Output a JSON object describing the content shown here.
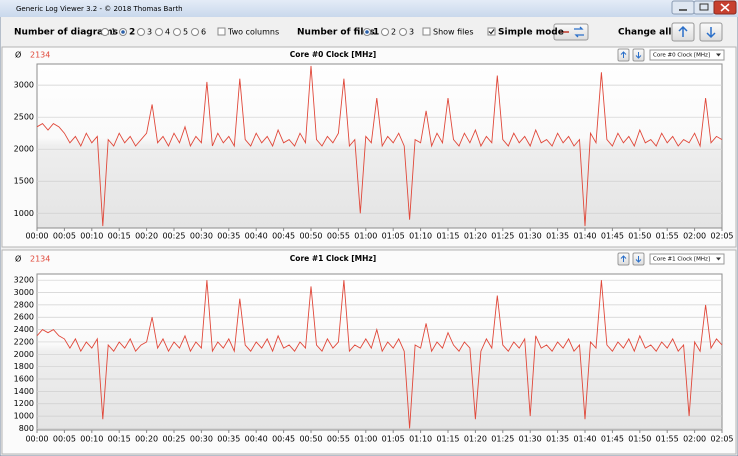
{
  "window": {
    "title": "Generic Log Viewer 3.2 - © 2018 Thomas Barth"
  },
  "toolbar": {
    "diagrams": {
      "label": "Number of diagrams",
      "options": [
        "1",
        "2",
        "3",
        "4",
        "5",
        "6"
      ],
      "selected": 1
    },
    "two_columns": {
      "label": "Two columns",
      "checked": false
    },
    "files": {
      "label": "Number of files",
      "options": [
        "1",
        "2",
        "3"
      ],
      "selected": 0
    },
    "show_files": {
      "label": "Show files",
      "checked": false
    },
    "simple_mode": {
      "label": "Simple mode",
      "checked": true
    },
    "change_all": "Change all"
  },
  "chart_data": [
    {
      "type": "line",
      "title": "Core #0 Clock [MHz]",
      "average_label": "Ø",
      "average": 2134,
      "selector": "Core #0 Clock [MHz]",
      "xlim": [
        0,
        125
      ],
      "ylim": [
        770,
        3330
      ],
      "yticks": [
        1000,
        1500,
        2000,
        2500,
        3000
      ],
      "grid": true,
      "xticks": [
        {
          "value": 0,
          "label": "00:00"
        },
        {
          "value": 5,
          "label": "00:05"
        },
        {
          "value": 10,
          "label": "00:10"
        },
        {
          "value": 15,
          "label": "00:15"
        },
        {
          "value": 20,
          "label": "00:20"
        },
        {
          "value": 25,
          "label": "00:25"
        },
        {
          "value": 30,
          "label": "00:30"
        },
        {
          "value": 35,
          "label": "00:35"
        },
        {
          "value": 40,
          "label": "00:40"
        },
        {
          "value": 45,
          "label": "00:45"
        },
        {
          "value": 50,
          "label": "00:50"
        },
        {
          "value": 55,
          "label": "00:55"
        },
        {
          "value": 60,
          "label": "01:00"
        },
        {
          "value": 65,
          "label": "01:05"
        },
        {
          "value": 70,
          "label": "01:10"
        },
        {
          "value": 75,
          "label": "01:15"
        },
        {
          "value": 80,
          "label": "01:20"
        },
        {
          "value": 85,
          "label": "01:25"
        },
        {
          "value": 90,
          "label": "01:30"
        },
        {
          "value": 95,
          "label": "01:35"
        },
        {
          "value": 100,
          "label": "01:40"
        },
        {
          "value": 105,
          "label": "01:45"
        },
        {
          "value": 110,
          "label": "01:50"
        },
        {
          "value": 115,
          "label": "01:55"
        },
        {
          "value": 120,
          "label": "02:00"
        },
        {
          "value": 125,
          "label": "02:05"
        }
      ],
      "x": [
        0,
        1,
        2,
        3,
        4,
        5,
        6,
        7,
        8,
        9,
        10,
        11,
        12,
        13,
        14,
        15,
        16,
        17,
        18,
        19,
        20,
        21,
        22,
        23,
        24,
        25,
        26,
        27,
        28,
        29,
        30,
        31,
        32,
        33,
        34,
        35,
        36,
        37,
        38,
        39,
        40,
        41,
        42,
        43,
        44,
        45,
        46,
        47,
        48,
        49,
        50,
        51,
        52,
        53,
        54,
        55,
        56,
        57,
        58,
        59,
        60,
        61,
        62,
        63,
        64,
        65,
        66,
        67,
        68,
        69,
        70,
        71,
        72,
        73,
        74,
        75,
        76,
        77,
        78,
        79,
        80,
        81,
        82,
        83,
        84,
        85,
        86,
        87,
        88,
        89,
        90,
        91,
        92,
        93,
        94,
        95,
        96,
        97,
        98,
        99,
        100,
        101,
        102,
        103,
        104,
        105,
        106,
        107,
        108,
        109,
        110,
        111,
        112,
        113,
        114,
        115,
        116,
        117,
        118,
        119,
        120,
        121,
        122,
        123,
        124,
        125
      ],
      "series": [
        {
          "color": "#e0483a",
          "values": [
            2350,
            2400,
            2300,
            2400,
            2350,
            2250,
            2100,
            2200,
            2050,
            2250,
            2100,
            2200,
            800,
            2150,
            2050,
            2250,
            2100,
            2200,
            2050,
            2150,
            2250,
            2700,
            2100,
            2200,
            2050,
            2250,
            2100,
            2350,
            2050,
            2200,
            2100,
            3050,
            2050,
            2250,
            2100,
            2200,
            2050,
            3100,
            2150,
            2050,
            2250,
            2100,
            2200,
            2050,
            2300,
            2100,
            2150,
            2050,
            2250,
            2100,
            3300,
            2150,
            2050,
            2200,
            2100,
            2250,
            3100,
            2050,
            2150,
            1000,
            2200,
            2100,
            2800,
            2050,
            2200,
            2100,
            2250,
            2050,
            900,
            2150,
            2100,
            2600,
            2050,
            2250,
            2100,
            2800,
            2150,
            2050,
            2250,
            2100,
            2300,
            2050,
            2200,
            2100,
            3150,
            2150,
            2050,
            2250,
            2100,
            2200,
            2050,
            2300,
            2100,
            2150,
            2050,
            2250,
            2100,
            2200,
            2050,
            2150,
            800,
            2250,
            2100,
            3200,
            2150,
            2050,
            2250,
            2100,
            2200,
            2050,
            2300,
            2100,
            2150,
            2050,
            2250,
            2100,
            2200,
            2050,
            2150,
            2100,
            2250,
            2050,
            2800,
            2100,
            2200,
            2150
          ]
        }
      ]
    },
    {
      "type": "line",
      "title": "Core #1 Clock [MHz]",
      "average_label": "Ø",
      "average": 2134,
      "selector": "Core #1 Clock [MHz]",
      "xlim": [
        0,
        125
      ],
      "ylim": [
        775,
        3300
      ],
      "yticks": [
        800,
        1000,
        1200,
        1400,
        1600,
        1800,
        2000,
        2200,
        2400,
        2600,
        2800,
        3000,
        3200
      ],
      "grid": true,
      "xticks": [
        {
          "value": 0,
          "label": "00:00"
        },
        {
          "value": 5,
          "label": "00:05"
        },
        {
          "value": 10,
          "label": "00:10"
        },
        {
          "value": 15,
          "label": "00:15"
        },
        {
          "value": 20,
          "label": "00:20"
        },
        {
          "value": 25,
          "label": "00:25"
        },
        {
          "value": 30,
          "label": "00:30"
        },
        {
          "value": 35,
          "label": "00:35"
        },
        {
          "value": 40,
          "label": "00:40"
        },
        {
          "value": 45,
          "label": "00:45"
        },
        {
          "value": 50,
          "label": "00:50"
        },
        {
          "value": 55,
          "label": "00:55"
        },
        {
          "value": 60,
          "label": "01:00"
        },
        {
          "value": 65,
          "label": "01:05"
        },
        {
          "value": 70,
          "label": "01:10"
        },
        {
          "value": 75,
          "label": "01:15"
        },
        {
          "value": 80,
          "label": "01:20"
        },
        {
          "value": 85,
          "label": "01:25"
        },
        {
          "value": 90,
          "label": "01:30"
        },
        {
          "value": 95,
          "label": "01:35"
        },
        {
          "value": 100,
          "label": "01:40"
        },
        {
          "value": 105,
          "label": "01:45"
        },
        {
          "value": 110,
          "label": "01:50"
        },
        {
          "value": 115,
          "label": "01:55"
        },
        {
          "value": 120,
          "label": "02:00"
        },
        {
          "value": 125,
          "label": "02:05"
        }
      ],
      "x": [
        0,
        1,
        2,
        3,
        4,
        5,
        6,
        7,
        8,
        9,
        10,
        11,
        12,
        13,
        14,
        15,
        16,
        17,
        18,
        19,
        20,
        21,
        22,
        23,
        24,
        25,
        26,
        27,
        28,
        29,
        30,
        31,
        32,
        33,
        34,
        35,
        36,
        37,
        38,
        39,
        40,
        41,
        42,
        43,
        44,
        45,
        46,
        47,
        48,
        49,
        50,
        51,
        52,
        53,
        54,
        55,
        56,
        57,
        58,
        59,
        60,
        61,
        62,
        63,
        64,
        65,
        66,
        67,
        68,
        69,
        70,
        71,
        72,
        73,
        74,
        75,
        76,
        77,
        78,
        79,
        80,
        81,
        82,
        83,
        84,
        85,
        86,
        87,
        88,
        89,
        90,
        91,
        92,
        93,
        94,
        95,
        96,
        97,
        98,
        99,
        100,
        101,
        102,
        103,
        104,
        105,
        106,
        107,
        108,
        109,
        110,
        111,
        112,
        113,
        114,
        115,
        116,
        117,
        118,
        119,
        120,
        121,
        122,
        123,
        124,
        125
      ],
      "series": [
        {
          "color": "#e0483a",
          "values": [
            2300,
            2400,
            2350,
            2400,
            2300,
            2250,
            2100,
            2250,
            2050,
            2200,
            2100,
            2250,
            950,
            2150,
            2050,
            2200,
            2100,
            2250,
            2050,
            2150,
            2200,
            2600,
            2100,
            2250,
            2050,
            2200,
            2100,
            2300,
            2050,
            2200,
            2100,
            3200,
            2050,
            2200,
            2100,
            2250,
            2050,
            2900,
            2150,
            2050,
            2200,
            2100,
            2250,
            2050,
            2300,
            2100,
            2150,
            2050,
            2200,
            2100,
            3100,
            2150,
            2050,
            2250,
            2100,
            2200,
            3200,
            2050,
            2150,
            2100,
            2250,
            2100,
            2400,
            2050,
            2200,
            2100,
            2250,
            2050,
            800,
            2150,
            2100,
            2500,
            2050,
            2200,
            2100,
            2350,
            2150,
            2050,
            2200,
            2100,
            950,
            2050,
            2250,
            2100,
            2950,
            2150,
            2050,
            2200,
            2100,
            2250,
            1000,
            2300,
            2100,
            2150,
            2050,
            2200,
            2100,
            2250,
            2050,
            2150,
            950,
            2200,
            2100,
            3200,
            2150,
            2050,
            2200,
            2100,
            2250,
            2050,
            2300,
            2100,
            2150,
            2050,
            2200,
            2100,
            2250,
            2050,
            2150,
            1000,
            2200,
            2050,
            2800,
            2100,
            2250,
            2150
          ]
        }
      ]
    }
  ]
}
